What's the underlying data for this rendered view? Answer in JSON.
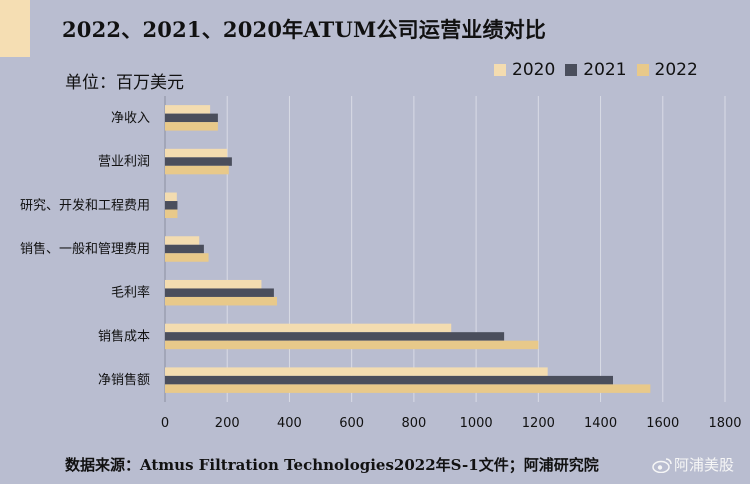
{
  "title": "2022、2021、2020年ATUM公司运营业绩对比",
  "unit": "单位：百万美元",
  "source": "数据来源：Atmus Filtration Technologies2022年S-1文件；阿浦研究院",
  "watermark": "阿浦美股",
  "legend": [
    "2020",
    "2021",
    "2022"
  ],
  "chart_data": {
    "type": "bar",
    "orientation": "horizontal",
    "categories": [
      "净收入",
      "营业利润",
      "研究、开发和工程费用",
      "销售、一般和管理费用",
      "毛利率",
      "销售成本",
      "净销售额"
    ],
    "series": [
      {
        "name": "2020",
        "color": "#f3dcb0",
        "values": [
          145,
          200,
          38,
          110,
          310,
          920,
          1230
        ]
      },
      {
        "name": "2021",
        "color": "#4a4e5c",
        "values": [
          170,
          215,
          40,
          125,
          350,
          1090,
          1440
        ]
      },
      {
        "name": "2022",
        "color": "#e8c98a",
        "values": [
          170,
          205,
          40,
          140,
          360,
          1200,
          1560
        ]
      }
    ],
    "xlim": [
      0,
      1800
    ],
    "xticks": [
      0,
      200,
      400,
      600,
      800,
      1000,
      1200,
      1400,
      1600,
      1800
    ],
    "grid": true,
    "legend_position": "top-right"
  }
}
